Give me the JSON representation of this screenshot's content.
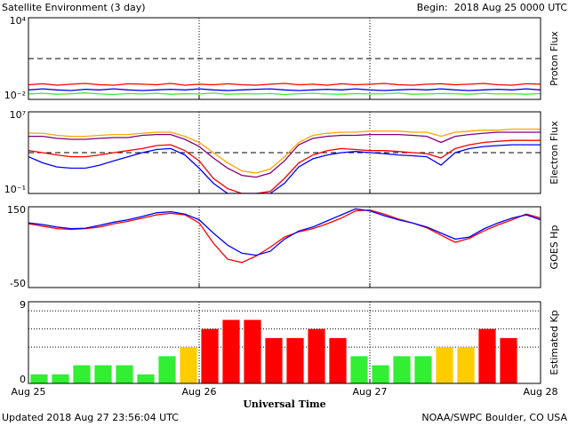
{
  "header": {
    "title": "Satellite Environment (3 day)",
    "begin": "Begin:  2018 Aug 25 0000 UTC"
  },
  "footer": {
    "updated": "Updated 2018 Aug 27 23:56:04 UTC",
    "credit": "NOAA/SWPC Boulder, CO USA"
  },
  "chart_data": [
    {
      "type": "line",
      "ylabel": "Proton Flux",
      "log": true,
      "ylim": [
        0.01,
        10000
      ],
      "yticks": [
        {
          "value": 10000,
          "label": "10⁴"
        },
        {
          "value": 0.01,
          "label": "10⁻²"
        }
      ],
      "threshold": 10,
      "xlim": [
        0,
        72
      ],
      "x": [
        0,
        2,
        4,
        6,
        8,
        10,
        12,
        14,
        16,
        18,
        20,
        22,
        24,
        26,
        28,
        30,
        32,
        34,
        36,
        38,
        40,
        42,
        44,
        46,
        48,
        50,
        52,
        54,
        56,
        58,
        60,
        62,
        64,
        66,
        68,
        70,
        72
      ],
      "series": [
        {
          "color": "#ff0000",
          "values": [
            0.12,
            0.14,
            0.11,
            0.13,
            0.15,
            0.12,
            0.11,
            0.14,
            0.13,
            0.12,
            0.15,
            0.11,
            0.13,
            0.12,
            0.14,
            0.12,
            0.11,
            0.13,
            0.15,
            0.12,
            0.13,
            0.11,
            0.14,
            0.12,
            0.13,
            0.15,
            0.12,
            0.11,
            0.13,
            0.14,
            0.12,
            0.13,
            0.15,
            0.12,
            0.11,
            0.14,
            0.13
          ]
        },
        {
          "color": "#0000ff",
          "values": [
            0.05,
            0.06,
            0.05,
            0.045,
            0.055,
            0.05,
            0.06,
            0.05,
            0.045,
            0.05,
            0.055,
            0.05,
            0.06,
            0.05,
            0.045,
            0.05,
            0.055,
            0.06,
            0.05,
            0.045,
            0.05,
            0.055,
            0.05,
            0.06,
            0.05,
            0.045,
            0.05,
            0.055,
            0.05,
            0.06,
            0.05,
            0.045,
            0.05,
            0.055,
            0.05,
            0.06,
            0.05
          ]
        },
        {
          "color": "#33ee33",
          "values": [
            0.025,
            0.028,
            0.024,
            0.026,
            0.03,
            0.025,
            0.023,
            0.027,
            0.025,
            0.028,
            0.024,
            0.026,
            0.025,
            0.029,
            0.024,
            0.026,
            0.025,
            0.027,
            0.023,
            0.026,
            0.028,
            0.025,
            0.024,
            0.027,
            0.025,
            0.026,
            0.029,
            0.024,
            0.025,
            0.027,
            0.026,
            0.024,
            0.028,
            0.025,
            0.026,
            0.024,
            0.027
          ]
        }
      ]
    },
    {
      "type": "line",
      "ylabel": "Electron Flux",
      "log": true,
      "ylim": [
        0.1,
        10000000
      ],
      "yticks": [
        {
          "value": 10000000,
          "label": "10⁷"
        },
        {
          "value": 0.1,
          "label": "10⁻¹"
        }
      ],
      "threshold": 1000,
      "xlim": [
        0,
        72
      ],
      "x": [
        0,
        2,
        4,
        6,
        8,
        10,
        12,
        14,
        16,
        18,
        20,
        22,
        24,
        26,
        28,
        30,
        32,
        34,
        36,
        38,
        40,
        42,
        44,
        46,
        48,
        50,
        52,
        54,
        56,
        58,
        60,
        62,
        64,
        66,
        68,
        70,
        72
      ],
      "series": [
        {
          "color": "#ffa500",
          "values": [
            80000,
            80000,
            50000,
            40000,
            40000,
            50000,
            60000,
            60000,
            80000,
            100000,
            100000,
            40000,
            10000,
            1000,
            100,
            16,
            10,
            25,
            400,
            10000,
            50000,
            80000,
            100000,
            100000,
            130000,
            130000,
            130000,
            100000,
            100000,
            40000,
            100000,
            130000,
            160000,
            160000,
            200000,
            200000,
            200000
          ]
        },
        {
          "color": "#800080",
          "values": [
            40000,
            40000,
            25000,
            20000,
            20000,
            25000,
            30000,
            30000,
            50000,
            60000,
            60000,
            20000,
            4000,
            300,
            30,
            6,
            4,
            10,
            160,
            6000,
            25000,
            40000,
            50000,
            50000,
            60000,
            60000,
            60000,
            50000,
            40000,
            10000,
            40000,
            60000,
            80000,
            100000,
            100000,
            100000,
            100000
          ]
        },
        {
          "color": "#ff0000",
          "values": [
            1600,
            1000,
            600,
            400,
            400,
            600,
            1000,
            1600,
            2500,
            5000,
            6000,
            1600,
            160,
            3,
            0.3,
            0.1,
            0.1,
            0.16,
            3,
            100,
            600,
            1600,
            2500,
            2000,
            1600,
            1600,
            1300,
            1000,
            800,
            300,
            2500,
            6000,
            10000,
            13000,
            16000,
            16000,
            16000
          ]
        },
        {
          "color": "#0000ff",
          "values": [
            400,
            100,
            40,
            30,
            30,
            60,
            160,
            400,
            1000,
            2000,
            2500,
            600,
            30,
            1,
            0.1,
            0.1,
            0.1,
            0.1,
            1,
            40,
            250,
            600,
            1000,
            1300,
            1000,
            800,
            600,
            500,
            400,
            60,
            1000,
            2500,
            4000,
            5000,
            6000,
            6000,
            6000
          ]
        }
      ]
    },
    {
      "type": "line",
      "ylabel": "GOES Hp",
      "log": false,
      "ylim": [
        -50,
        150
      ],
      "yticks": [
        150,
        -50
      ],
      "xlim": [
        0,
        72
      ],
      "x": [
        0,
        2,
        4,
        6,
        8,
        10,
        12,
        14,
        16,
        18,
        20,
        22,
        24,
        26,
        28,
        30,
        32,
        34,
        36,
        38,
        40,
        42,
        44,
        46,
        48,
        50,
        52,
        54,
        56,
        58,
        60,
        62,
        64,
        66,
        68,
        70,
        72
      ],
      "series": [
        {
          "color": "#ff0000",
          "values": [
            108,
            102,
            96,
            94,
            96,
            100,
            108,
            114,
            122,
            130,
            134,
            130,
            110,
            60,
            20,
            12,
            28,
            50,
            75,
            88,
            96,
            108,
            122,
            140,
            142,
            132,
            120,
            110,
            98,
            80,
            62,
            72,
            90,
            105,
            118,
            132,
            122
          ]
        },
        {
          "color": "#0000ff",
          "values": [
            110,
            106,
            100,
            96,
            97,
            104,
            112,
            118,
            126,
            135,
            138,
            132,
            118,
            85,
            55,
            35,
            30,
            40,
            70,
            90,
            100,
            115,
            130,
            145,
            140,
            128,
            118,
            110,
            100,
            85,
            70,
            75,
            95,
            110,
            122,
            130,
            118
          ]
        }
      ]
    },
    {
      "type": "bar",
      "ylabel": "Estimated Kp",
      "xlabel": "Universal Time",
      "log": false,
      "ylim": [
        0,
        9
      ],
      "yticks": [
        9,
        0
      ],
      "grid_y": [
        4,
        6,
        8
      ],
      "xlim": [
        0,
        72
      ],
      "xticks": [
        {
          "value": 0,
          "label": "Aug 25"
        },
        {
          "value": 24,
          "label": "Aug 26"
        },
        {
          "value": 48,
          "label": "Aug 27"
        },
        {
          "value": 72,
          "label": "Aug 28"
        }
      ],
      "x": [
        1.5,
        4.5,
        7.5,
        10.5,
        13.5,
        16.5,
        19.5,
        22.5,
        25.5,
        28.5,
        31.5,
        34.5,
        37.5,
        40.5,
        43.5,
        46.5,
        49.5,
        52.5,
        55.5,
        58.5,
        61.5,
        64.5,
        67.5
      ],
      "values": [
        1,
        1,
        2,
        2,
        2,
        1,
        3,
        4,
        6,
        7,
        7,
        5,
        5,
        6,
        5,
        3,
        2,
        3,
        3,
        4,
        4,
        6,
        5
      ],
      "colors": [
        "#33ee33",
        "#33ee33",
        "#33ee33",
        "#33ee33",
        "#33ee33",
        "#33ee33",
        "#33ee33",
        "#ffcc00",
        "#ff0000",
        "#ff0000",
        "#ff0000",
        "#ff0000",
        "#ff0000",
        "#ff0000",
        "#ff0000",
        "#33ee33",
        "#33ee33",
        "#33ee33",
        "#33ee33",
        "#ffcc00",
        "#ffcc00",
        "#ff0000",
        "#ff0000"
      ]
    }
  ]
}
